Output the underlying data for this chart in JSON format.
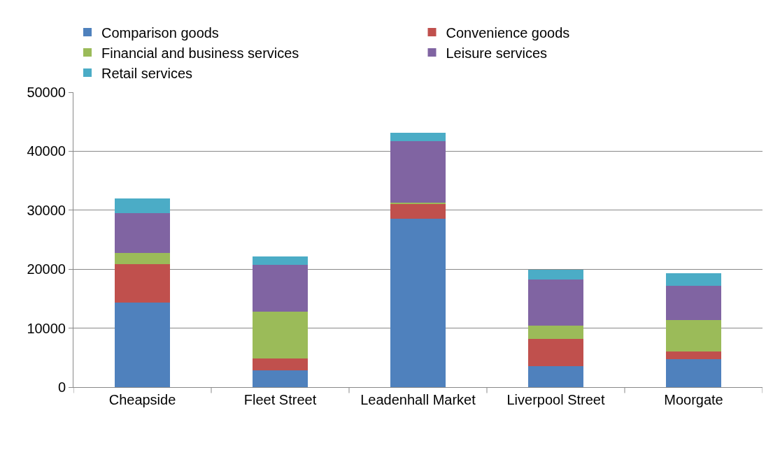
{
  "chart_data": {
    "type": "bar",
    "stacked": true,
    "categories": [
      "Cheapside",
      "Fleet Street",
      "Leadenhall Market",
      "Liverpool Street",
      "Moorgate"
    ],
    "series": [
      {
        "name": "Comparison goods",
        "color": "#4f81bd",
        "values": [
          14300,
          2800,
          28600,
          3600,
          4700
        ]
      },
      {
        "name": "Convenience goods",
        "color": "#c0504d",
        "values": [
          6500,
          2000,
          2400,
          4600,
          1350
        ]
      },
      {
        "name": "Financial and business services",
        "color": "#9bbb59",
        "values": [
          2000,
          8000,
          300,
          2200,
          5350
        ]
      },
      {
        "name": "Leisure services",
        "color": "#8064a2",
        "values": [
          6650,
          7950,
          10350,
          7800,
          5800
        ]
      },
      {
        "name": "Retail services",
        "color": "#4bacc6",
        "values": [
          2500,
          1350,
          1500,
          1700,
          2150
        ]
      }
    ],
    "ylim": [
      0,
      50000
    ],
    "yticks": [
      0,
      10000,
      20000,
      30000,
      40000,
      50000
    ],
    "grid": "y",
    "legend": "top"
  }
}
